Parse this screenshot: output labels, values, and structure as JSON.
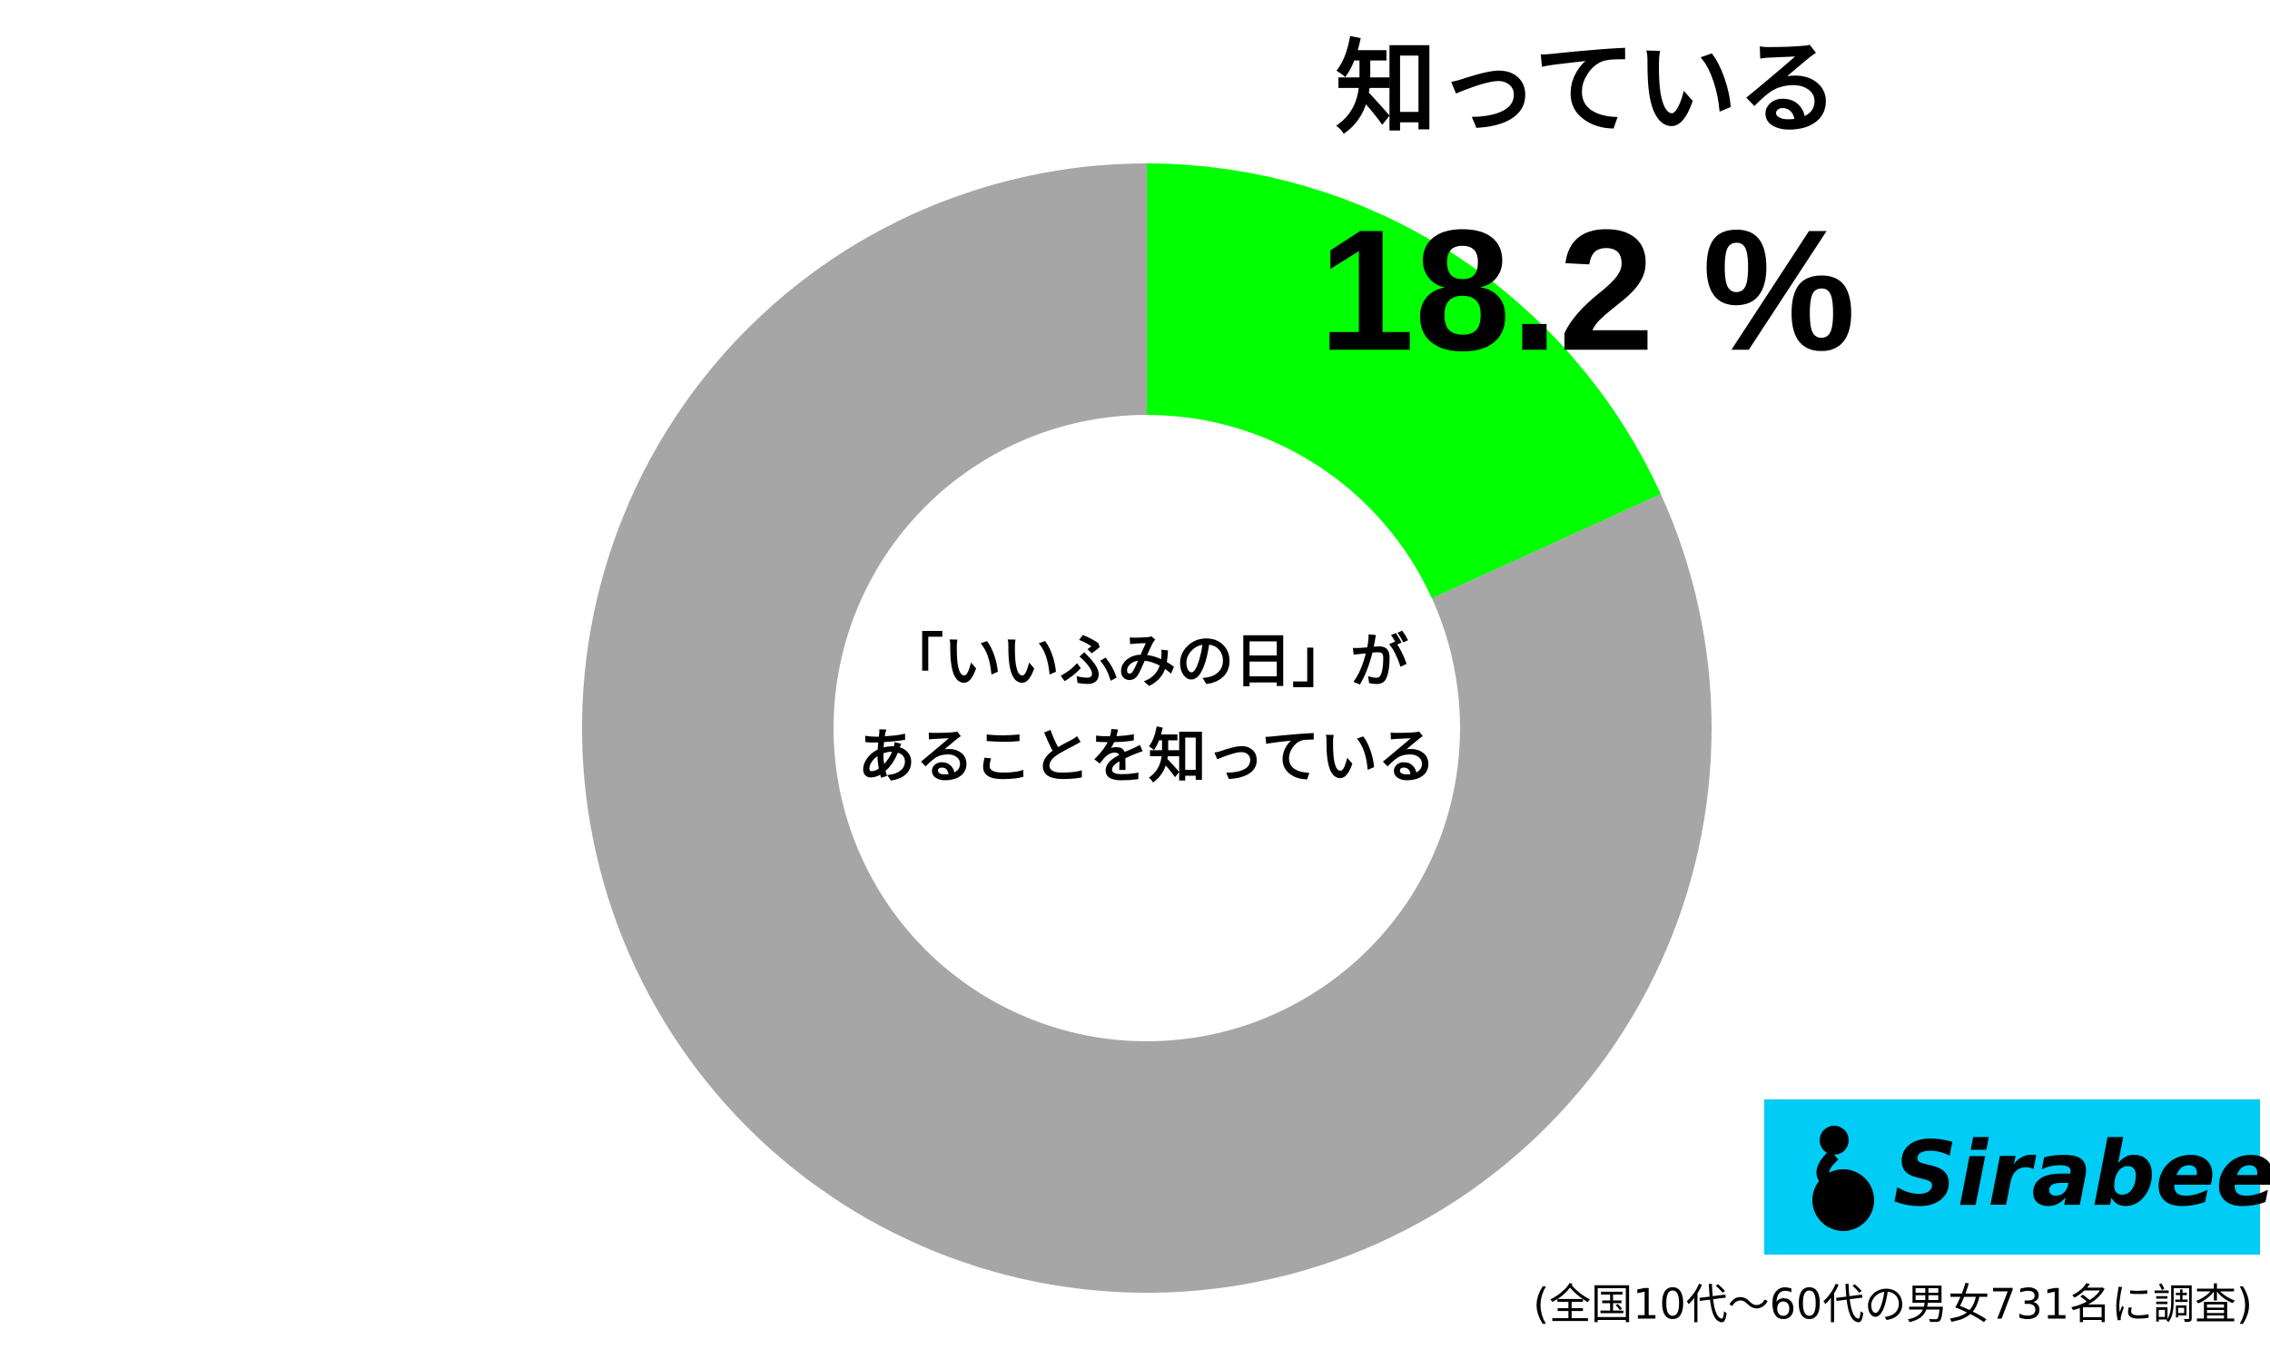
{
  "chart_data": {
    "type": "donut",
    "categories": [
      "知っている",
      null
    ],
    "values": [
      18.2,
      81.8
    ],
    "value_labels": [
      "18.2 %",
      null
    ],
    "colors": [
      "#00ff00",
      "#a6a6a6"
    ],
    "center_label": [
      "「いいふみの日」が",
      "あることを知っている"
    ],
    "footnote": "(全国10代～60代の男女731名に調査)",
    "logo": "Sirabee"
  }
}
